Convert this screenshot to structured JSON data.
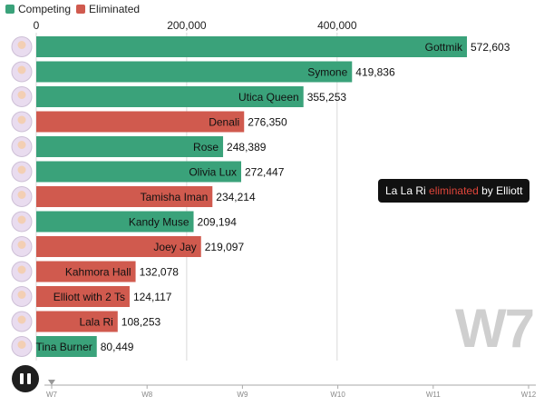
{
  "legend": {
    "competing_label": "Competing",
    "eliminated_label": "Eliminated",
    "competing_color": "#3aa27a",
    "eliminated_color": "#d05a4e"
  },
  "chart_data": {
    "type": "bar",
    "orientation": "horizontal",
    "title": "",
    "xlabel": "",
    "ylabel": "",
    "xlim": [
      0,
      572603
    ],
    "x_ticks": [
      0,
      200000,
      400000
    ],
    "x_tick_labels": [
      "0",
      "200,000",
      "400,000"
    ],
    "grid": true,
    "categories": [
      "Gottmik",
      "Symone",
      "Utica Queen",
      "Denali",
      "Rose",
      "Olivia Lux",
      "Tamisha Iman",
      "Kandy Muse",
      "Joey Jay",
      "Kahmora Hall",
      "Elliott with 2 Ts",
      "Lala Ri",
      "Tina Burner"
    ],
    "values": [
      572603,
      419836,
      355253,
      276350,
      248389,
      272447,
      234214,
      209194,
      219097,
      132078,
      124117,
      108253,
      80449
    ],
    "value_labels": [
      "572,603",
      "419,836",
      "355,253",
      "276,350",
      "248,389",
      "272,447",
      "234,214",
      "209,194",
      "219,097",
      "132,078",
      "124,117",
      "108,253",
      "80,449"
    ],
    "status": [
      "Competing",
      "Competing",
      "Competing",
      "Eliminated",
      "Competing",
      "Competing",
      "Eliminated",
      "Competing",
      "Eliminated",
      "Eliminated",
      "Eliminated",
      "Eliminated",
      "Competing"
    ]
  },
  "annotation": {
    "name": "La La Ri",
    "action": "eliminated",
    "by": "by Elliott"
  },
  "current_week": "W7",
  "timeline": {
    "labels": [
      "W7",
      "W8",
      "W9",
      "W10",
      "W11",
      "W12"
    ],
    "position": "W7"
  },
  "controls": {
    "pause_icon": "pause-icon"
  }
}
